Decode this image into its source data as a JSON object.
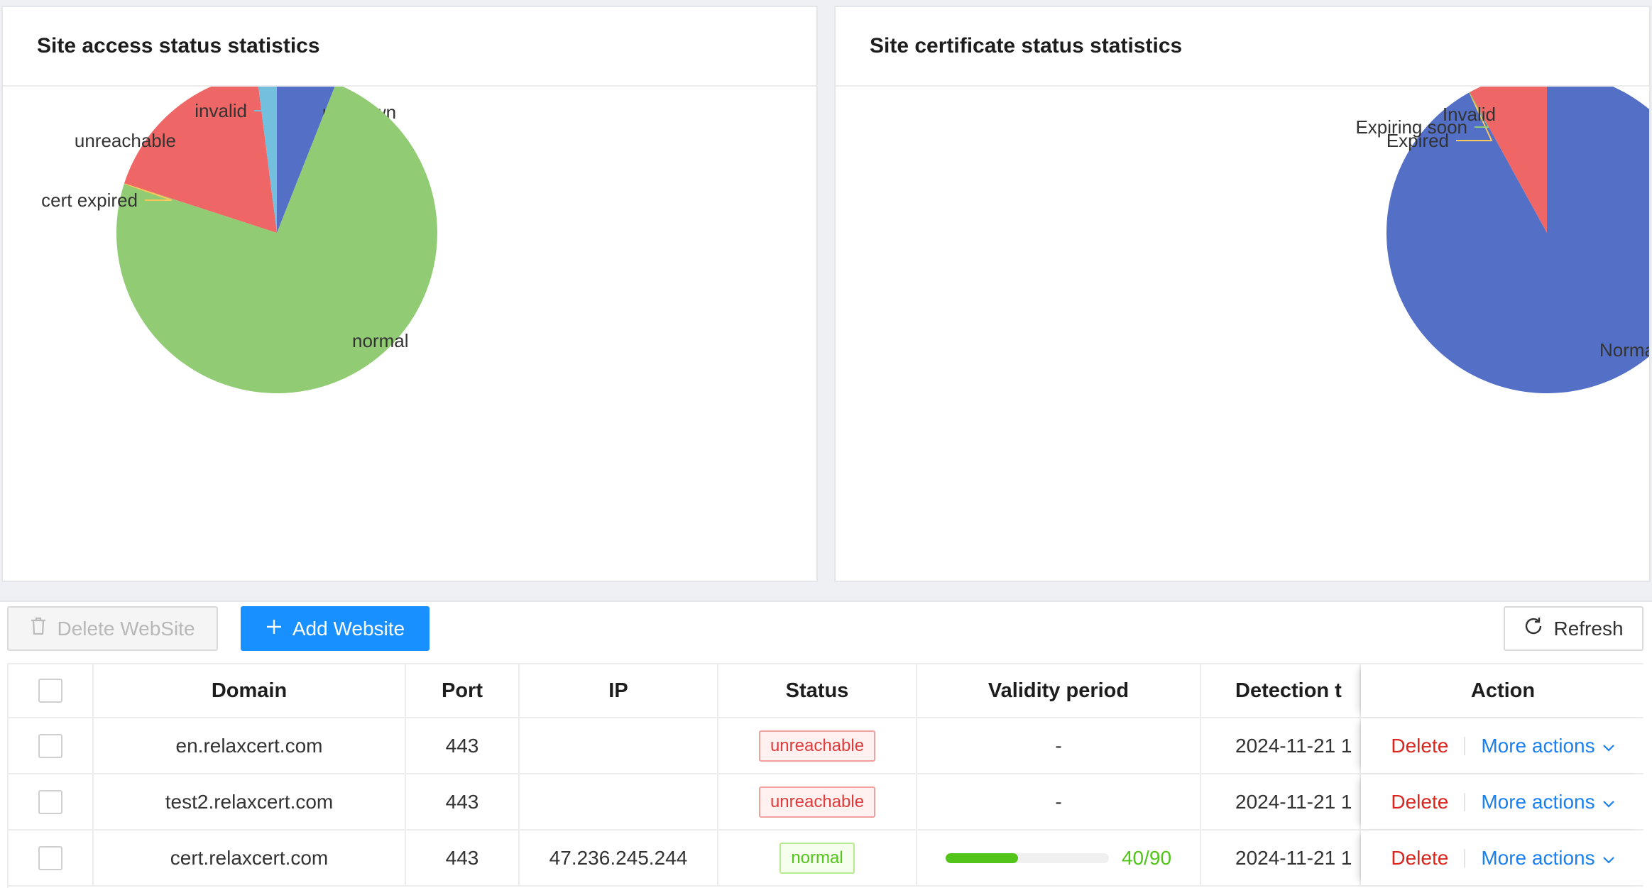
{
  "charts": {
    "access": {
      "title": "Site access status statistics",
      "chart_data": {
        "type": "pie",
        "title": "Site access status statistics",
        "categories": [
          "unknown",
          "normal",
          "cert expired",
          "unreachable",
          "invalid"
        ],
        "values": [
          6,
          74,
          0,
          18,
          2
        ],
        "colors": [
          "#5470c6",
          "#91cc75",
          "#fac858",
          "#ee6666",
          "#73c0de"
        ]
      }
    },
    "cert": {
      "title": "Site certificate status statistics",
      "chart_data": {
        "type": "pie",
        "title": "Site certificate status statistics",
        "categories": [
          "Normal",
          "Expired",
          "Expiring soon",
          "Invalid"
        ],
        "values": [
          92,
          0,
          0,
          8
        ],
        "colors": [
          "#5470c6",
          "#fac858",
          "#91cc75",
          "#ee6666"
        ]
      }
    }
  },
  "toolbar": {
    "delete_label": "Delete WebSite",
    "add_label": "Add Website",
    "refresh_label": "Refresh"
  },
  "table": {
    "headers": {
      "domain": "Domain",
      "port": "Port",
      "ip": "IP",
      "status": "Status",
      "validity": "Validity period",
      "detection": "Detection t",
      "action": "Action"
    },
    "rows": [
      {
        "domain": "en.relaxcert.com",
        "port": "443",
        "ip": "",
        "status": "unreachable",
        "validity": "-",
        "detection": "2024-11-21 1"
      },
      {
        "domain": "test2.relaxcert.com",
        "port": "443",
        "ip": "",
        "status": "unreachable",
        "validity": "-",
        "detection": "2024-11-21 1"
      },
      {
        "domain": "cert.relaxcert.com",
        "port": "443",
        "ip": "47.236.245.244",
        "status": "normal",
        "validity_text": "40/90",
        "validity_fraction": 0.444,
        "detection": "2024-11-21 1"
      }
    ],
    "action_delete": "Delete",
    "action_more": "More actions"
  }
}
